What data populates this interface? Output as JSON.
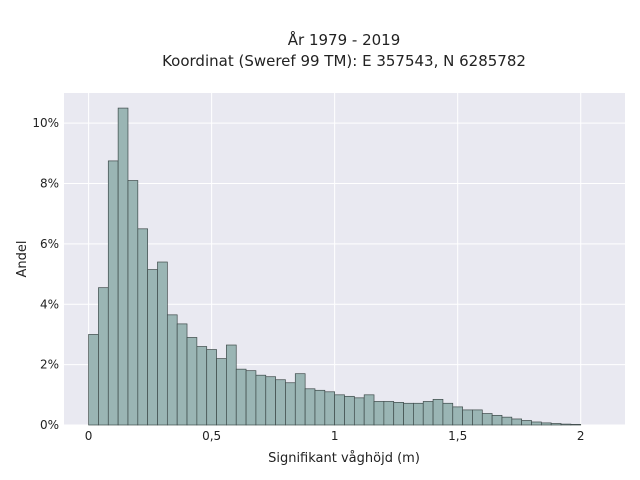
{
  "chart_data": {
    "type": "bar",
    "title_lines": [
      "År 1979 - 2019",
      "Koordinat (Sweref 99 TM): E 357543, N 6285782"
    ],
    "xlabel": "Signifikant våghöjd (m)",
    "ylabel": "Andel",
    "x_ticks": [
      {
        "value": 0,
        "label": "0"
      },
      {
        "value": 0.5,
        "label": "0,5"
      },
      {
        "value": 1,
        "label": "1"
      },
      {
        "value": 1.5,
        "label": "1,5"
      },
      {
        "value": 2,
        "label": "2"
      }
    ],
    "y_ticks": [
      {
        "value": 0,
        "label": "0%"
      },
      {
        "value": 2,
        "label": "2%"
      },
      {
        "value": 4,
        "label": "4%"
      },
      {
        "value": 6,
        "label": "6%"
      },
      {
        "value": 8,
        "label": "8%"
      },
      {
        "value": 10,
        "label": "10%"
      }
    ],
    "xlim": [
      -0.1,
      2.18
    ],
    "ylim": [
      0,
      11
    ],
    "bin_start": 0.0,
    "bin_width": 0.04,
    "values": [
      3.0,
      4.55,
      8.75,
      10.5,
      8.1,
      6.5,
      5.15,
      5.4,
      3.65,
      3.35,
      2.9,
      2.6,
      2.5,
      2.2,
      2.65,
      1.85,
      1.8,
      1.65,
      1.6,
      1.5,
      1.4,
      1.7,
      1.2,
      1.15,
      1.1,
      1.0,
      0.95,
      0.9,
      1.0,
      0.78,
      0.78,
      0.75,
      0.72,
      0.72,
      0.78,
      0.85,
      0.72,
      0.6,
      0.5,
      0.5,
      0.38,
      0.32,
      0.26,
      0.2,
      0.15,
      0.1,
      0.07,
      0.05,
      0.03,
      0.02
    ],
    "grid": true,
    "colors": {
      "plot_background": "#e9e9f1",
      "grid": "#ffffff",
      "bar_fill": "#9ab5b4",
      "bar_stroke": "#3d4a49"
    }
  }
}
